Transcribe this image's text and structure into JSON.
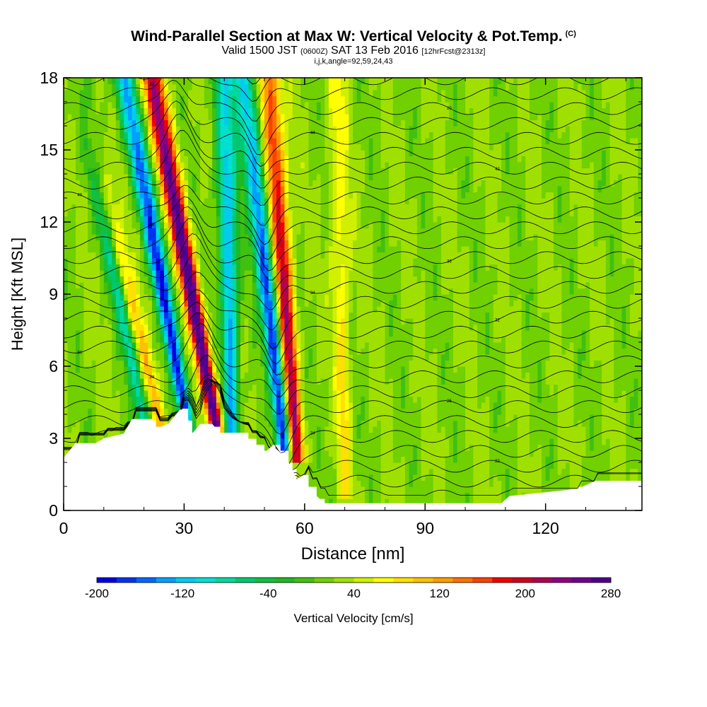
{
  "title": {
    "main": "Wind-Parallel Section at Max W: Vertical Velocity & Pot.Temp.",
    "copyright": "(C)",
    "valid_prefix": "Valid 1500 JST",
    "valid_utc": "(0600Z)",
    "valid_date": "SAT 13 Feb 2016",
    "forecast": "[12hrFcst@2313z]",
    "section_info": "i,j,k,angle=92,59,24,43"
  },
  "colorbar": {
    "label": "Vertical Velocity [cm/s]",
    "ticks": [
      "-200",
      "-120",
      "-40",
      "40",
      "120",
      "200",
      "280"
    ],
    "min": -200,
    "max": 280,
    "step": 20,
    "colors": [
      "#0000e0",
      "#0033f0",
      "#0066ff",
      "#00a0ff",
      "#00ccf0",
      "#00e0d0",
      "#00d8a0",
      "#00c870",
      "#10c040",
      "#20b820",
      "#40c010",
      "#70d000",
      "#a0e000",
      "#d0f000",
      "#ffff00",
      "#ffe000",
      "#ffc000",
      "#ff9c00",
      "#ff7000",
      "#ff4000",
      "#f00000",
      "#d00020",
      "#b00050",
      "#900080",
      "#700090",
      "#50008c"
    ]
  },
  "chart_data": {
    "type": "heatmap",
    "title": "Wind-Parallel Section at Max W: Vertical Velocity & Pot.Temp.",
    "xlabel": "Distance [nm]",
    "ylabel": "Height [Kft MSL]",
    "xlim": [
      0,
      144
    ],
    "ylim": [
      0,
      18
    ],
    "x_ticks": [
      0,
      30,
      60,
      90,
      120
    ],
    "y_ticks": [
      0,
      3,
      6,
      9,
      12,
      15,
      18
    ],
    "x_tick_labels": [
      "0",
      "30",
      "60",
      "90",
      "120"
    ],
    "y_tick_labels": [
      "0",
      "3",
      "6",
      "9",
      "12",
      "15",
      "18"
    ],
    "colorbar_range": [
      -200,
      280
    ],
    "background_value": 20,
    "updraft_bands": [
      {
        "x_base": 38,
        "x_top": 22,
        "h_base": 3.5,
        "h_top": 18,
        "peak": 280
      },
      {
        "x_base": 58,
        "x_top": 51,
        "h_base": 2.5,
        "h_top": 18,
        "peak": 200
      },
      {
        "x_base": 24,
        "x_top": 3,
        "h_base": 3.8,
        "h_top": 18,
        "peak": 80
      },
      {
        "x_base": 70,
        "x_top": 68,
        "h_base": 1.0,
        "h_top": 18,
        "peak": 60
      }
    ],
    "downdraft_bands": [
      {
        "x_base": 31,
        "x_top": 15,
        "h_base": 3.5,
        "h_top": 18,
        "peak": -200
      },
      {
        "x_base": 55,
        "x_top": 45,
        "h_base": 2.5,
        "h_top": 18,
        "peak": -200
      },
      {
        "x_base": 42,
        "x_top": 40,
        "h_base": 3.5,
        "h_top": 18,
        "peak": -160
      },
      {
        "x_base": 20,
        "x_top": 3,
        "h_base": 3.8,
        "h_top": 18,
        "peak": -100
      }
    ],
    "terrain_height_kft": [
      [
        0,
        2.2
      ],
      [
        3,
        2.8
      ],
      [
        8,
        2.8
      ],
      [
        10,
        3.0
      ],
      [
        15,
        3.2
      ],
      [
        17,
        3.8
      ],
      [
        22,
        3.8
      ],
      [
        23,
        3.4
      ],
      [
        26,
        3.6
      ],
      [
        29,
        4.2
      ],
      [
        30,
        4.2
      ],
      [
        31,
        3.8
      ],
      [
        32,
        3.2
      ],
      [
        34,
        3.6
      ],
      [
        37,
        3.6
      ],
      [
        39,
        3.2
      ],
      [
        45,
        3.2
      ],
      [
        46,
        2.9
      ],
      [
        48,
        2.7
      ],
      [
        50,
        2.4
      ],
      [
        52,
        2.7
      ],
      [
        54,
        2.4
      ],
      [
        56,
        2.0
      ],
      [
        57,
        1.7
      ],
      [
        58,
        1.3
      ],
      [
        60,
        1.5
      ],
      [
        61,
        1.0
      ],
      [
        63,
        0.6
      ],
      [
        65,
        0.3
      ],
      [
        109,
        0.3
      ],
      [
        111,
        0.6
      ],
      [
        128,
        0.9
      ],
      [
        132,
        1.2
      ],
      [
        144,
        1.2
      ]
    ],
    "theta_contours": {
      "count": 30,
      "label_values": [
        "20",
        "22",
        "24",
        "26",
        "28",
        "30",
        "32",
        "34",
        "36",
        "38",
        "40",
        "42",
        "44"
      ]
    }
  }
}
